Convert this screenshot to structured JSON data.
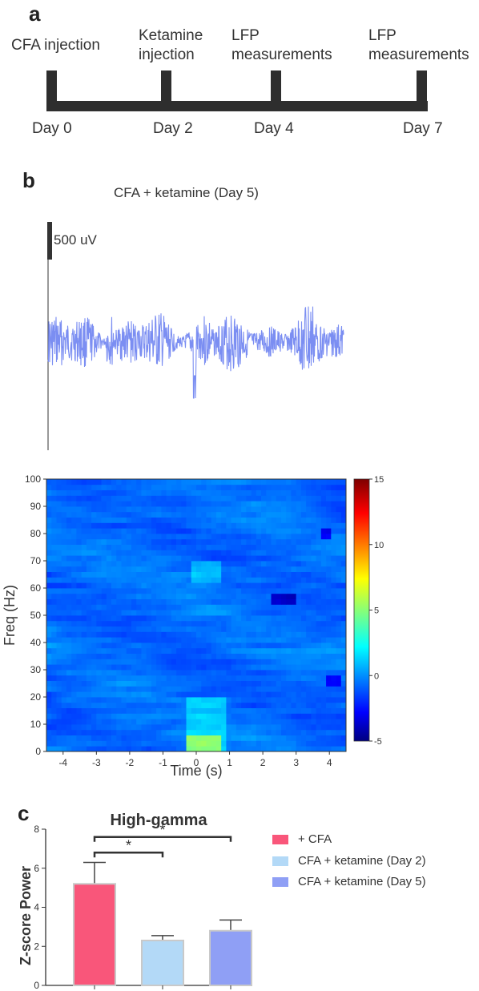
{
  "panel_a": {
    "letter": "a",
    "events": [
      {
        "line1": "CFA injection",
        "line2": ""
      },
      {
        "line1": "Ketamine",
        "line2": "injection"
      },
      {
        "line1": "LFP",
        "line2": "measurements"
      },
      {
        "line1": "LFP",
        "line2": "measurements"
      }
    ],
    "days": [
      "Day 0",
      "Day 2",
      "Day 4",
      "Day 7"
    ]
  },
  "panel_b": {
    "letter": "b",
    "trace_title": "CFA + ketamine (Day 5)",
    "scale_bar_label": "500 uV",
    "trace_color": "#7b8ef2"
  },
  "chart_data": [
    {
      "type": "heatmap",
      "title": "",
      "xlabel": "Time (s)",
      "ylabel": "Freq (Hz)",
      "xlim": [
        -4.5,
        4.5
      ],
      "ylim": [
        0,
        100
      ],
      "x_ticks": [
        -4,
        -3,
        -2,
        -1,
        0,
        1,
        2,
        3,
        4
      ],
      "y_ticks": [
        0,
        10,
        20,
        30,
        40,
        50,
        60,
        70,
        80,
        90,
        100
      ],
      "colorbar": {
        "min": -5,
        "max": 15,
        "ticks": [
          -5,
          0,
          5,
          10,
          15
        ],
        "colormap": "jet"
      },
      "description_values": {
        "background_z_range": [
          -2,
          1
        ],
        "hotspot_0_5Hz_at_t0_z": 5,
        "low_freq_0_20Hz_after_t0_z": 2,
        "band_62_70Hz_at_t0_z": 2.5,
        "dip_55Hz_at_t2.7s_z": -4
      }
    },
    {
      "type": "bar",
      "title": "High-gamma",
      "xlabel": "",
      "ylabel": "Z-score Power",
      "ylim": [
        0,
        8
      ],
      "y_ticks": [
        0,
        2,
        4,
        6,
        8
      ],
      "categories": [
        "+ CFA",
        "CFA + ketamine (Day 2)",
        "CFA + ketamine (Day 5)"
      ],
      "values": [
        5.2,
        2.3,
        2.8
      ],
      "errors": [
        1.1,
        0.25,
        0.55
      ],
      "colors": [
        "#f9567a",
        "#b3d9f7",
        "#8f9ff5"
      ],
      "legend_position": "right",
      "significance": [
        {
          "from": 0,
          "to": 1,
          "label": "*"
        },
        {
          "from": 0,
          "to": 2,
          "label": "*"
        }
      ]
    }
  ],
  "panel_c": {
    "letter": "c"
  }
}
